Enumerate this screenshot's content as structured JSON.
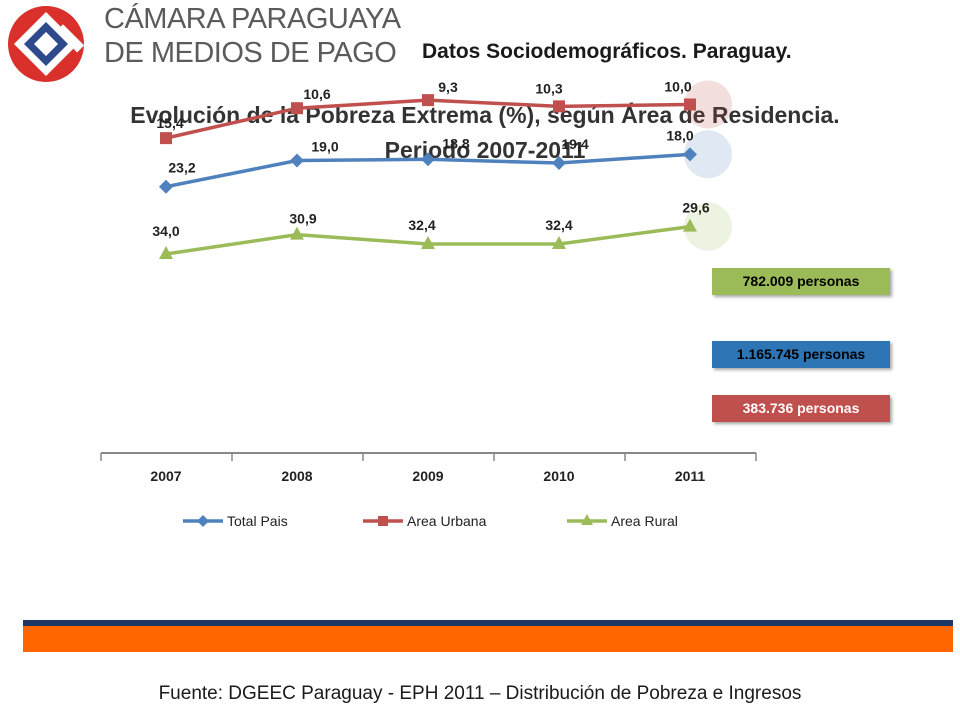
{
  "logo": {
    "icon": "camara-paraguaya-logo-icon",
    "line1": "CÁMARA PARAGUAYA",
    "line2": "DE MEDIOS DE PAGO"
  },
  "header": {
    "title": "Datos Sociodemográficos. Paraguay."
  },
  "chart_data": {
    "type": "line",
    "title": "Evolución de la Pobreza Extrema (%), según Área de Residencia. Periodo 2007-2011",
    "categories": [
      "2007",
      "2008",
      "2009",
      "2010",
      "2011"
    ],
    "series": [
      {
        "name": "Area Rural",
        "values": [
          34.0,
          30.9,
          32.4,
          32.4,
          29.6
        ],
        "labels": [
          "34,0",
          "30,9",
          "32,4",
          "32,4",
          "29,6"
        ],
        "color": "#9bbb59",
        "marker": "triangle",
        "badge": "782.009 personas",
        "badge_color": "#9bbb59",
        "badge_text_color": "#000000"
      },
      {
        "name": "Total Pais",
        "values": [
          23.2,
          19.0,
          18.8,
          19.4,
          18.0
        ],
        "labels": [
          "23,2",
          "19,0",
          "18,8",
          "19,4",
          "18,0"
        ],
        "color": "#4f81bd",
        "marker": "diamond",
        "badge": "1.165.745 personas",
        "badge_color": "#2e75b6",
        "badge_text_color": "#000000"
      },
      {
        "name": "Area Urbana",
        "values": [
          15.4,
          10.6,
          9.3,
          10.3,
          10.0
        ],
        "labels": [
          "15,4",
          "10,6",
          "9,3",
          "10,3",
          "10,0"
        ],
        "color": "#c0504d",
        "marker": "square",
        "badge": "383.736 personas",
        "badge_color": "#c0504d",
        "badge_text_color": "#ffffff"
      }
    ],
    "legend_order": [
      "Total Pais",
      "Area Urbana",
      "Area Rural"
    ],
    "legend_position": "bottom",
    "grid": false
  },
  "source": "Fuente: DGEEC Paraguay - EPH 2011 – Distribución de Pobreza e Ingresos"
}
